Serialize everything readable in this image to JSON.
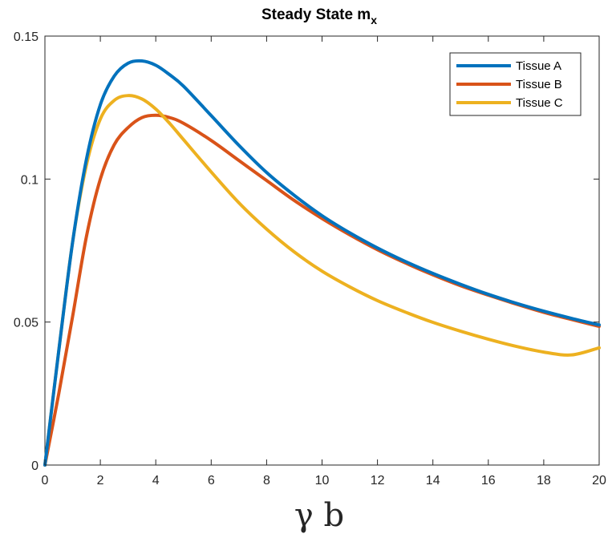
{
  "chart_data": {
    "type": "line",
    "title": "Steady State m",
    "title_subscript": "x",
    "xlabel": "γ b",
    "ylabel": "",
    "xlim": [
      0,
      20
    ],
    "ylim": [
      0,
      0.15
    ],
    "xticks": [
      0,
      2,
      4,
      6,
      8,
      10,
      12,
      14,
      16,
      18,
      20
    ],
    "yticks": [
      0,
      0.05,
      0.1,
      0.15
    ],
    "ytick_labels": [
      "0",
      "0.05",
      "0.1",
      "0.15"
    ],
    "grid": false,
    "legend_position": "top-right",
    "x": [
      0,
      0.5,
      1,
      1.5,
      2,
      2.5,
      3,
      3.5,
      4,
      4.5,
      5,
      6,
      7,
      8,
      9,
      10,
      11,
      12,
      13,
      14,
      15,
      16,
      17,
      18,
      19,
      20
    ],
    "series": [
      {
        "name": "Tissue A",
        "color": "#0072BD",
        "values": [
          0,
          0.04,
          0.078,
          0.107,
          0.126,
          0.136,
          0.1405,
          0.1413,
          0.1398,
          0.1365,
          0.1325,
          0.1222,
          0.1118,
          0.1023,
          0.0943,
          0.0872,
          0.0812,
          0.0759,
          0.0712,
          0.067,
          0.0632,
          0.0597,
          0.0566,
          0.0538,
          0.0513,
          0.049
        ]
      },
      {
        "name": "Tissue B",
        "color": "#D95319",
        "values": [
          0,
          0.025,
          0.052,
          0.08,
          0.1,
          0.112,
          0.118,
          0.1215,
          0.1223,
          0.1215,
          0.1195,
          0.1135,
          0.1065,
          0.0995,
          0.0925,
          0.0862,
          0.0805,
          0.0753,
          0.0707,
          0.0665,
          0.0627,
          0.0594,
          0.0563,
          0.0534,
          0.0509,
          0.0485
        ]
      },
      {
        "name": "Tissue C",
        "color": "#EDB120",
        "values": [
          0,
          0.04,
          0.078,
          0.105,
          0.121,
          0.1275,
          0.1292,
          0.128,
          0.1245,
          0.1195,
          0.1138,
          0.1025,
          0.0917,
          0.0825,
          0.0745,
          0.0678,
          0.0623,
          0.0575,
          0.0535,
          0.0499,
          0.0468,
          0.044,
          0.0415,
          0.0395,
          0.0385,
          0.041
        ]
      }
    ]
  }
}
